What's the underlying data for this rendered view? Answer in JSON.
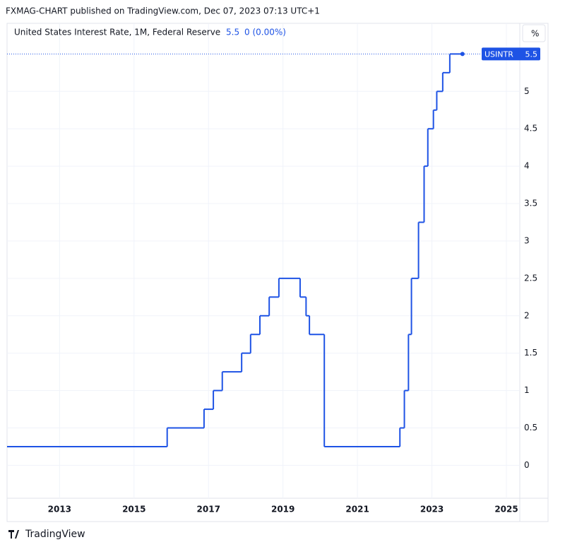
{
  "header": "FXMAG-CHART published on TradingView.com, Dec 07, 2023 07:13 UTC+1",
  "footer": "TradingView",
  "chart_data": {
    "type": "line",
    "step": true,
    "change_label": "0 (0.00%)",
    "unit_button": "%",
    "series": [
      {
        "name": "United States Interest Rate, 1M, Federal Reserve",
        "symbol": "USINTR",
        "color": "#1e53e5",
        "values": [
          0.25,
          0.5,
          0.75,
          1.0,
          1.25,
          1.5,
          1.75,
          2.0,
          2.25,
          2.5,
          2.25,
          2.0,
          1.75,
          0.25,
          0.5,
          1.0,
          1.75,
          2.5,
          3.25,
          4.0,
          4.5,
          4.75,
          5.0,
          5.25,
          5.5,
          5.5
        ]
      }
    ],
    "x": [
      2011.59,
      2015.89,
      2016.88,
      2017.13,
      2017.37,
      2017.89,
      2018.13,
      2018.38,
      2018.63,
      2018.89,
      2019.46,
      2019.62,
      2019.71,
      2020.11,
      2022.14,
      2022.26,
      2022.37,
      2022.45,
      2022.64,
      2022.79,
      2022.89,
      2023.04,
      2023.13,
      2023.29,
      2023.48,
      2023.82
    ],
    "xlim": [
      2011.59,
      2025.36
    ],
    "xticks": [
      2013,
      2015,
      2017,
      2019,
      2021,
      2023,
      2025
    ],
    "ylim": [
      -0.44,
      5.91
    ],
    "yticks": [
      0,
      0.5,
      1,
      1.5,
      2,
      2.5,
      3,
      3.5,
      4,
      4.5,
      5
    ],
    "grid": true
  }
}
